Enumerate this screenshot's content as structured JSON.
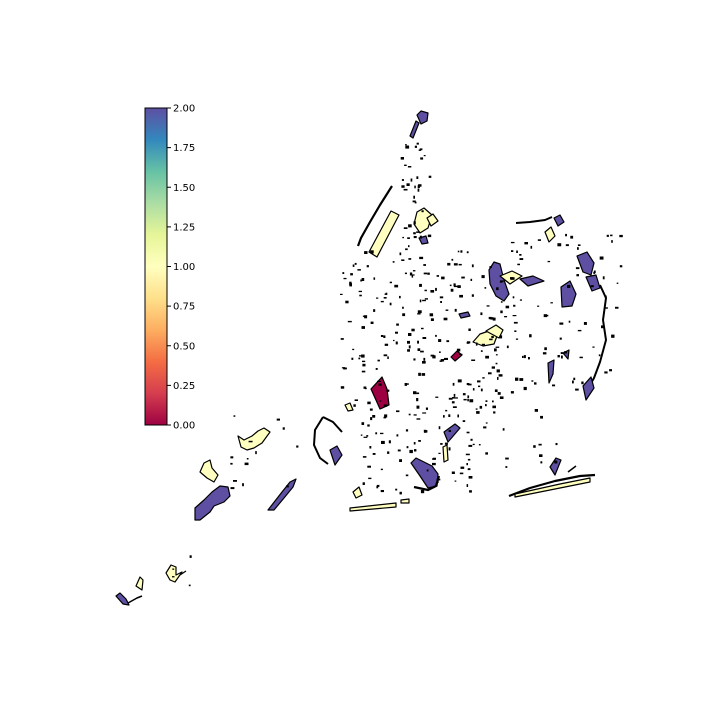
{
  "figure": {
    "type": "choropleth map",
    "background": "#ffffff",
    "outline_color": "#000000"
  },
  "colorbar": {
    "colormap": "Spectral",
    "min": 0.0,
    "max": 2.0,
    "orientation": "vertical",
    "placement": "left",
    "ticks": [
      "0.00",
      "0.25",
      "0.50",
      "0.75",
      "1.00",
      "1.25",
      "1.50",
      "1.75",
      "2.00"
    ],
    "stops": [
      {
        "offset": 0.0,
        "color": "#9e0142"
      },
      {
        "offset": 0.1,
        "color": "#d53e4f"
      },
      {
        "offset": 0.2,
        "color": "#f46d43"
      },
      {
        "offset": 0.3,
        "color": "#fdae61"
      },
      {
        "offset": 0.4,
        "color": "#fee08b"
      },
      {
        "offset": 0.5,
        "color": "#ffffbf"
      },
      {
        "offset": 0.6,
        "color": "#e6f598"
      },
      {
        "offset": 0.7,
        "color": "#abdda4"
      },
      {
        "offset": 0.8,
        "color": "#66c2a5"
      },
      {
        "offset": 0.9,
        "color": "#3288bd"
      },
      {
        "offset": 1.0,
        "color": "#5e4fa2"
      }
    ]
  },
  "chart_data": {
    "type": "choropleth",
    "value_range": [
      0.0,
      2.0
    ],
    "colors_in_use": {
      "high_2_00": "#5e4fa2",
      "mid_1_00": "#ffffbf",
      "low_0_00": "#9e0142",
      "near_0_90": "#fee08b"
    }
  }
}
